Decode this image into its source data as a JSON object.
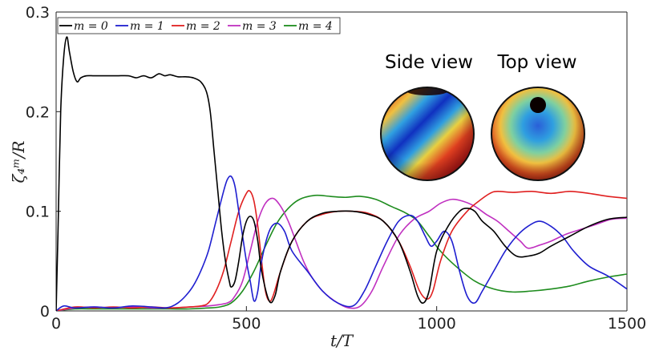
{
  "chart_data": {
    "type": "line",
    "xlabel": "t/T",
    "ylabel": "ζ₄ᵐ/R",
    "xlim": [
      0,
      1500
    ],
    "ylim": [
      0,
      0.3
    ],
    "xticks": [
      0,
      500,
      1000,
      1500
    ],
    "xtick_labels": [
      "0",
      "500",
      "1000",
      "1500"
    ],
    "yticks": [
      0,
      0.1,
      0.2,
      0.3
    ],
    "ytick_labels": [
      "0",
      "0.1",
      "0.2",
      "0.3"
    ],
    "grid": false,
    "legend_position": "top-left",
    "series": [
      {
        "name": "m = 0",
        "color": "#000000",
        "x": [
          0,
          5,
          12,
          20,
          28,
          35,
          45,
          55,
          65,
          80,
          100,
          130,
          160,
          190,
          210,
          230,
          250,
          270,
          285,
          300,
          320,
          340,
          360,
          380,
          395,
          405,
          415,
          425,
          435,
          445,
          455,
          460,
          470,
          480,
          490,
          500,
          510,
          520,
          530,
          540,
          560,
          575,
          590,
          620,
          660,
          700,
          740,
          780,
          820,
          860,
          900,
          930,
          950,
          965,
          980,
          1000,
          1030,
          1060,
          1080,
          1100,
          1120,
          1150,
          1180,
          1210,
          1240,
          1270,
          1300,
          1350,
          1400,
          1450,
          1500
        ],
        "y": [
          0.0,
          0.08,
          0.2,
          0.255,
          0.275,
          0.26,
          0.24,
          0.23,
          0.234,
          0.236,
          0.236,
          0.236,
          0.236,
          0.236,
          0.234,
          0.236,
          0.234,
          0.238,
          0.236,
          0.237,
          0.235,
          0.235,
          0.234,
          0.23,
          0.22,
          0.2,
          0.16,
          0.12,
          0.08,
          0.05,
          0.03,
          0.024,
          0.03,
          0.05,
          0.075,
          0.09,
          0.095,
          0.09,
          0.07,
          0.04,
          0.01,
          0.015,
          0.04,
          0.07,
          0.09,
          0.098,
          0.1,
          0.1,
          0.097,
          0.09,
          0.07,
          0.04,
          0.015,
          0.008,
          0.02,
          0.06,
          0.085,
          0.1,
          0.103,
          0.1,
          0.09,
          0.08,
          0.065,
          0.055,
          0.055,
          0.058,
          0.065,
          0.075,
          0.085,
          0.092,
          0.094
        ]
      },
      {
        "name": "m = 1",
        "color": "#1f1fd0",
        "x": [
          0,
          20,
          50,
          100,
          150,
          200,
          250,
          280,
          300,
          320,
          340,
          360,
          380,
          400,
          420,
          440,
          450,
          460,
          470,
          480,
          490,
          500,
          510,
          520,
          530,
          540,
          560,
          580,
          600,
          620,
          660,
          700,
          740,
          780,
          810,
          840,
          870,
          900,
          930,
          950,
          970,
          985,
          1000,
          1020,
          1040,
          1060,
          1080,
          1100,
          1120,
          1150,
          1180,
          1210,
          1240,
          1270,
          1300,
          1330,
          1360,
          1400,
          1450,
          1500
        ],
        "y": [
          0.0,
          0.005,
          0.003,
          0.004,
          0.003,
          0.005,
          0.004,
          0.003,
          0.004,
          0.008,
          0.015,
          0.025,
          0.04,
          0.06,
          0.09,
          0.12,
          0.132,
          0.135,
          0.125,
          0.1,
          0.075,
          0.05,
          0.03,
          0.01,
          0.02,
          0.05,
          0.08,
          0.088,
          0.08,
          0.06,
          0.04,
          0.02,
          0.008,
          0.005,
          0.02,
          0.045,
          0.07,
          0.09,
          0.096,
          0.09,
          0.075,
          0.065,
          0.07,
          0.08,
          0.07,
          0.04,
          0.015,
          0.008,
          0.02,
          0.04,
          0.06,
          0.075,
          0.085,
          0.09,
          0.085,
          0.075,
          0.06,
          0.045,
          0.035,
          0.022
        ]
      },
      {
        "name": "m = 2",
        "color": "#e02020",
        "x": [
          0,
          50,
          100,
          150,
          200,
          250,
          300,
          350,
          380,
          400,
          420,
          440,
          460,
          480,
          500,
          510,
          520,
          530,
          540,
          550,
          560,
          570,
          590,
          620,
          660,
          700,
          740,
          780,
          820,
          860,
          900,
          930,
          955,
          975,
          990,
          1010,
          1040,
          1080,
          1110,
          1140,
          1160,
          1200,
          1250,
          1300,
          1350,
          1400,
          1450,
          1500
        ],
        "y": [
          0.0,
          0.004,
          0.003,
          0.004,
          0.003,
          0.004,
          0.003,
          0.004,
          0.005,
          0.008,
          0.02,
          0.04,
          0.07,
          0.1,
          0.118,
          0.12,
          0.11,
          0.085,
          0.05,
          0.02,
          0.01,
          0.015,
          0.04,
          0.07,
          0.09,
          0.097,
          0.1,
          0.1,
          0.098,
          0.09,
          0.07,
          0.045,
          0.02,
          0.012,
          0.02,
          0.05,
          0.08,
          0.1,
          0.11,
          0.118,
          0.12,
          0.119,
          0.12,
          0.118,
          0.12,
          0.118,
          0.115,
          0.113
        ]
      },
      {
        "name": "m = 3",
        "color": "#c030c0",
        "x": [
          0,
          50,
          100,
          150,
          200,
          250,
          300,
          350,
          400,
          450,
          470,
          490,
          510,
          530,
          550,
          570,
          590,
          610,
          630,
          650,
          670,
          700,
          740,
          770,
          800,
          830,
          860,
          900,
          940,
          980,
          1010,
          1040,
          1070,
          1100,
          1130,
          1160,
          1190,
          1220,
          1240,
          1270,
          1300,
          1340,
          1380,
          1420,
          1460,
          1500
        ],
        "y": [
          0.0,
          0.003,
          0.004,
          0.003,
          0.004,
          0.003,
          0.003,
          0.004,
          0.005,
          0.008,
          0.015,
          0.03,
          0.06,
          0.09,
          0.108,
          0.113,
          0.105,
          0.09,
          0.07,
          0.05,
          0.035,
          0.02,
          0.008,
          0.003,
          0.005,
          0.02,
          0.045,
          0.075,
          0.092,
          0.1,
          0.108,
          0.112,
          0.11,
          0.105,
          0.097,
          0.09,
          0.08,
          0.07,
          0.063,
          0.066,
          0.07,
          0.077,
          0.082,
          0.087,
          0.092,
          0.093
        ]
      },
      {
        "name": "m = 4",
        "color": "#1e8c1e",
        "x": [
          0,
          50,
          100,
          150,
          200,
          250,
          300,
          350,
          400,
          430,
          460,
          490,
          520,
          550,
          580,
          610,
          640,
          680,
          720,
          760,
          800,
          840,
          880,
          920,
          950,
          980,
          1010,
          1050,
          1100,
          1150,
          1200,
          1250,
          1300,
          1350,
          1400,
          1450,
          1500
        ],
        "y": [
          0.0,
          0.002,
          0.002,
          0.002,
          0.002,
          0.002,
          0.002,
          0.002,
          0.003,
          0.004,
          0.008,
          0.02,
          0.04,
          0.065,
          0.088,
          0.103,
          0.112,
          0.116,
          0.115,
          0.114,
          0.115,
          0.112,
          0.105,
          0.098,
          0.09,
          0.075,
          0.06,
          0.045,
          0.03,
          0.022,
          0.019,
          0.02,
          0.022,
          0.025,
          0.03,
          0.034,
          0.037
        ]
      }
    ]
  },
  "insets": [
    {
      "title": "Side view"
    },
    {
      "title": "Top view"
    }
  ]
}
